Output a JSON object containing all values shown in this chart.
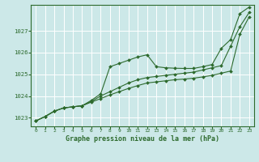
{
  "title": "Graphe pression niveau de la mer (hPa)",
  "bg_color": "#cce8e8",
  "grid_color": "#ffffff",
  "line_color": "#2d6a2d",
  "border_color": "#2d6a2d",
  "xlim": [
    -0.5,
    23.5
  ],
  "ylim": [
    1022.6,
    1028.2
  ],
  "yticks": [
    1023,
    1024,
    1025,
    1026,
    1027
  ],
  "xticks": [
    0,
    1,
    2,
    3,
    4,
    5,
    6,
    7,
    8,
    9,
    10,
    11,
    12,
    13,
    14,
    15,
    16,
    17,
    18,
    19,
    20,
    21,
    22,
    23
  ],
  "series": [
    [
      1022.85,
      1023.05,
      1023.3,
      1023.45,
      1023.5,
      1023.55,
      1023.8,
      1024.1,
      1025.35,
      1025.5,
      1025.65,
      1025.8,
      1025.9,
      1025.35,
      1025.3,
      1025.28,
      1025.27,
      1025.27,
      1025.35,
      1025.45,
      1026.2,
      1026.6,
      1027.8,
      1028.1
    ],
    [
      1022.85,
      1023.05,
      1023.3,
      1023.45,
      1023.5,
      1023.55,
      1023.75,
      1024.0,
      1024.2,
      1024.4,
      1024.6,
      1024.75,
      1024.85,
      1024.9,
      1024.95,
      1025.0,
      1025.05,
      1025.1,
      1025.2,
      1025.3,
      1025.4,
      1026.3,
      1027.2,
      1027.85
    ],
    [
      1022.85,
      1023.05,
      1023.3,
      1023.45,
      1023.5,
      1023.55,
      1023.72,
      1023.88,
      1024.05,
      1024.2,
      1024.35,
      1024.48,
      1024.6,
      1024.65,
      1024.7,
      1024.75,
      1024.78,
      1024.82,
      1024.88,
      1024.95,
      1025.05,
      1025.15,
      1026.85,
      1027.65
    ]
  ]
}
